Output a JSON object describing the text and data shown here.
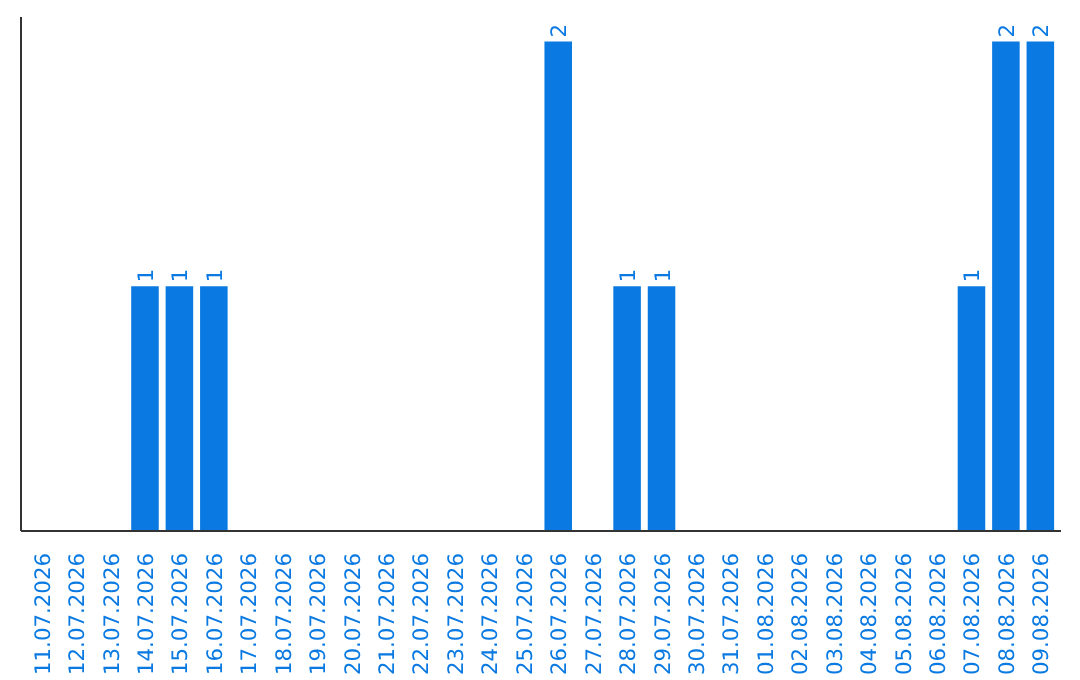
{
  "chart_data": {
    "type": "bar",
    "categories": [
      "11.07.2026",
      "12.07.2026",
      "13.07.2026",
      "14.07.2026",
      "15.07.2026",
      "16.07.2026",
      "17.07.2026",
      "18.07.2026",
      "19.07.2026",
      "20.07.2026",
      "21.07.2026",
      "22.07.2026",
      "23.07.2026",
      "24.07.2026",
      "25.07.2026",
      "26.07.2026",
      "27.07.2026",
      "28.07.2026",
      "29.07.2026",
      "30.07.2026",
      "31.07.2026",
      "01.08.2026",
      "02.08.2026",
      "03.08.2026",
      "04.08.2026",
      "05.08.2026",
      "06.08.2026",
      "07.08.2026",
      "08.08.2026",
      "09.08.2026"
    ],
    "values": [
      0,
      0,
      0,
      1,
      1,
      1,
      0,
      0,
      0,
      0,
      0,
      0,
      0,
      0,
      0,
      2,
      0,
      1,
      1,
      0,
      0,
      0,
      0,
      0,
      0,
      0,
      0,
      1,
      2,
      2
    ],
    "value_labels": [
      null,
      null,
      null,
      "1",
      "1",
      "1",
      null,
      null,
      null,
      null,
      null,
      null,
      null,
      null,
      null,
      "2",
      null,
      "1",
      "1",
      null,
      null,
      null,
      null,
      null,
      null,
      null,
      null,
      "1",
      "2",
      "2"
    ],
    "color": "#0a7ae2",
    "grid": false
  }
}
